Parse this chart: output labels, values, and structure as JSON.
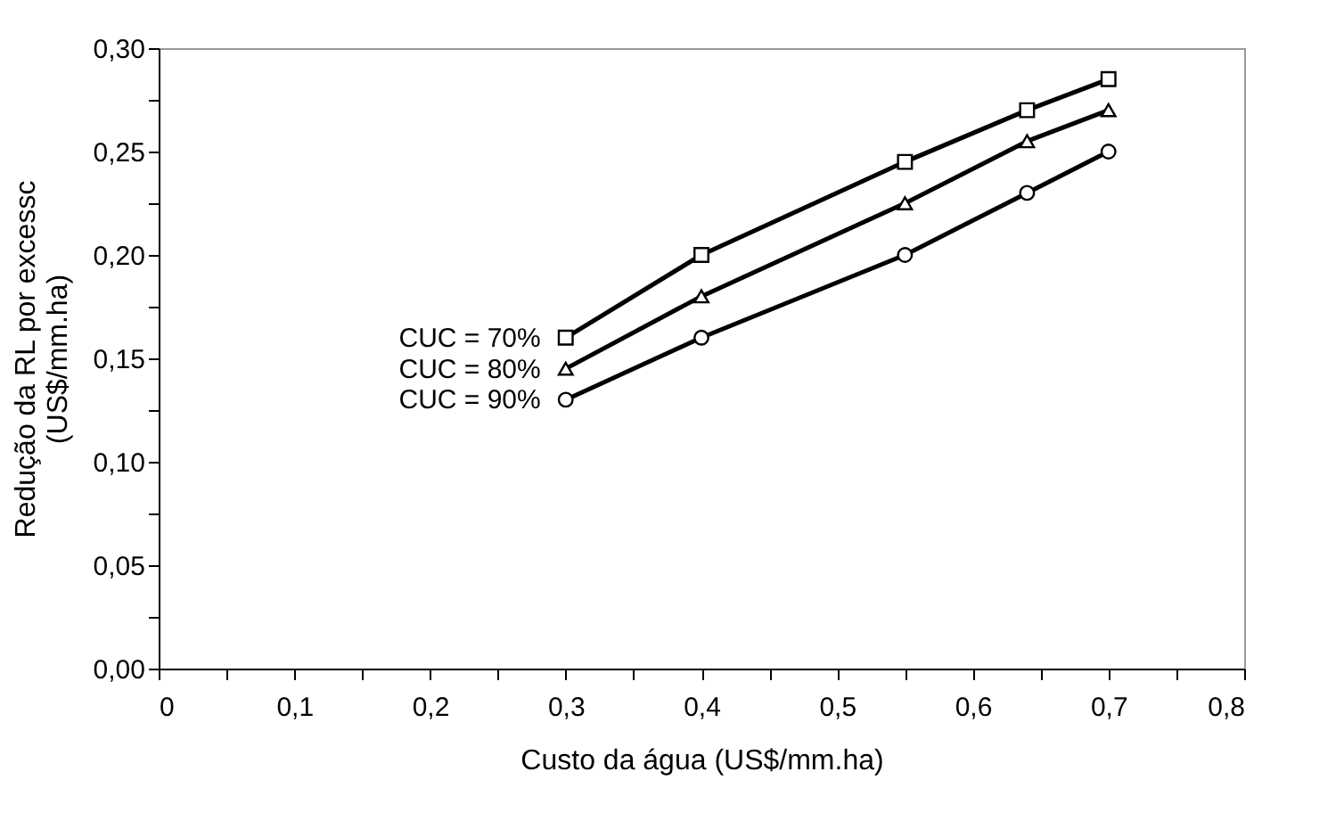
{
  "chart_data": {
    "type": "line",
    "xlabel": "Custo da água (US$/mm.ha)",
    "ylabel": "Redução da RL por excessc\n(US$/mm.ha)",
    "x": [
      0.3,
      0.4,
      0.55,
      0.64,
      0.7
    ],
    "series": [
      {
        "name": "CUC = 70%",
        "color": "#000000",
        "marker": "square",
        "values": [
          0.16,
          0.2,
          0.245,
          0.27,
          0.285
        ]
      },
      {
        "name": "CUC = 80%",
        "color": "#000000",
        "marker": "triangle",
        "values": [
          0.145,
          0.18,
          0.225,
          0.255,
          0.27
        ]
      },
      {
        "name": "CUC = 90%",
        "color": "#000000",
        "marker": "circle",
        "values": [
          0.13,
          0.16,
          0.2,
          0.23,
          0.25
        ]
      }
    ],
    "xlim": [
      0,
      0.8
    ],
    "xticks": [
      {
        "value": 0,
        "label": "0"
      },
      {
        "value": 0.05,
        "label": null
      },
      {
        "value": 0.1,
        "label": "0,1"
      },
      {
        "value": 0.15,
        "label": null
      },
      {
        "value": 0.2,
        "label": "0,2"
      },
      {
        "value": 0.25,
        "label": null
      },
      {
        "value": 0.3,
        "label": "0,3"
      },
      {
        "value": 0.35,
        "label": null
      },
      {
        "value": 0.4,
        "label": "0,4"
      },
      {
        "value": 0.45,
        "label": null
      },
      {
        "value": 0.5,
        "label": "0,5"
      },
      {
        "value": 0.55,
        "label": null
      },
      {
        "value": 0.6,
        "label": "0,6"
      },
      {
        "value": 0.65,
        "label": null
      },
      {
        "value": 0.7,
        "label": "0,7"
      },
      {
        "value": 0.75,
        "label": null
      },
      {
        "value": 0.8,
        "label": "0,8"
      }
    ],
    "ylim": [
      0,
      0.3
    ],
    "yticks": [
      {
        "value": 0,
        "label": "0,00"
      },
      {
        "value": 0.025,
        "label": null
      },
      {
        "value": 0.05,
        "label": "0,05"
      },
      {
        "value": 0.075,
        "label": null
      },
      {
        "value": 0.1,
        "label": "0,10"
      },
      {
        "value": 0.125,
        "label": null
      },
      {
        "value": 0.15,
        "label": "0,15"
      },
      {
        "value": 0.175,
        "label": null
      },
      {
        "value": 0.2,
        "label": "0,20"
      },
      {
        "value": 0.225,
        "label": null
      },
      {
        "value": 0.25,
        "label": "0,25"
      },
      {
        "value": 0.275,
        "label": null
      },
      {
        "value": 0.3,
        "label": "0,30"
      }
    ],
    "grid": false,
    "legend": false,
    "line_style": "solid"
  }
}
